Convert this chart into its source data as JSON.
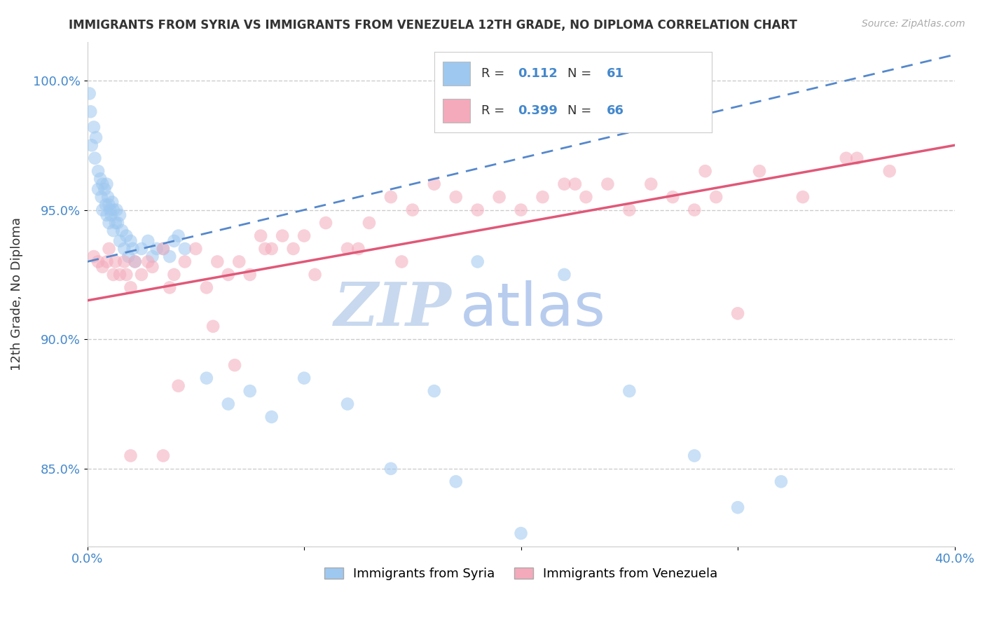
{
  "title": "IMMIGRANTS FROM SYRIA VS IMMIGRANTS FROM VENEZUELA 12TH GRADE, NO DIPLOMA CORRELATION CHART",
  "source": "Source: ZipAtlas.com",
  "ylabel": "12th Grade, No Diploma",
  "xlim": [
    0.0,
    40.0
  ],
  "ylim": [
    82.0,
    101.5
  ],
  "xtick_labels": [
    "0.0%",
    "",
    "",
    "",
    "40.0%"
  ],
  "ytick_labels": [
    "85.0%",
    "90.0%",
    "95.0%",
    "100.0%"
  ],
  "yticks": [
    85.0,
    90.0,
    95.0,
    100.0
  ],
  "legend_label1": "Immigrants from Syria",
  "legend_label2": "Immigrants from Venezuela",
  "r1": "0.112",
  "n1": "61",
  "r2": "0.399",
  "n2": "66",
  "color_syria": "#9EC8F0",
  "color_venezuela": "#F4AABB",
  "line_syria_color": "#5588CC",
  "line_venezuela_color": "#E05878",
  "background_color": "#FFFFFF",
  "grid_color": "#CCCCCC",
  "watermark_zip": "ZIP",
  "watermark_atlas": "atlas",
  "watermark_color_zip": "#C8D8EE",
  "watermark_color_atlas": "#B8CCEE",
  "tick_color": "#4488CC",
  "syria_x": [
    0.1,
    0.15,
    0.2,
    0.3,
    0.35,
    0.4,
    0.5,
    0.5,
    0.6,
    0.65,
    0.7,
    0.7,
    0.8,
    0.85,
    0.9,
    0.9,
    0.95,
    1.0,
    1.0,
    1.05,
    1.1,
    1.15,
    1.2,
    1.2,
    1.3,
    1.35,
    1.4,
    1.5,
    1.5,
    1.6,
    1.7,
    1.8,
    1.9,
    2.0,
    2.1,
    2.2,
    2.5,
    3.0,
    3.5,
    4.0,
    4.5,
    5.5,
    6.5,
    7.5,
    8.5,
    10.0,
    12.0,
    14.0,
    16.0,
    17.0,
    20.0,
    25.0,
    28.0,
    30.0,
    32.0,
    3.2,
    3.8,
    2.8,
    4.2,
    18.0,
    22.0
  ],
  "syria_y": [
    99.5,
    98.8,
    97.5,
    98.2,
    97.0,
    97.8,
    96.5,
    95.8,
    96.2,
    95.5,
    96.0,
    95.0,
    95.8,
    95.2,
    96.0,
    94.8,
    95.5,
    95.2,
    94.5,
    95.0,
    94.8,
    95.3,
    95.0,
    94.2,
    94.5,
    95.0,
    94.5,
    94.8,
    93.8,
    94.2,
    93.5,
    94.0,
    93.2,
    93.8,
    93.5,
    93.0,
    93.5,
    93.2,
    93.5,
    93.8,
    93.5,
    88.5,
    87.5,
    88.0,
    87.0,
    88.5,
    87.5,
    85.0,
    88.0,
    84.5,
    82.5,
    88.0,
    85.5,
    83.5,
    84.5,
    93.5,
    93.2,
    93.8,
    94.0,
    93.0,
    92.5
  ],
  "venezuela_x": [
    0.3,
    0.5,
    0.7,
    0.9,
    1.0,
    1.2,
    1.3,
    1.5,
    1.7,
    1.8,
    2.0,
    2.2,
    2.5,
    2.8,
    3.0,
    3.5,
    3.8,
    4.0,
    4.5,
    5.0,
    5.5,
    6.0,
    6.5,
    7.0,
    7.5,
    8.0,
    8.5,
    9.0,
    9.5,
    10.0,
    11.0,
    12.0,
    13.0,
    14.0,
    15.0,
    16.0,
    17.0,
    18.0,
    19.0,
    20.0,
    21.0,
    22.0,
    23.0,
    24.0,
    25.0,
    26.0,
    27.0,
    28.0,
    29.0,
    30.0,
    31.0,
    33.0,
    35.0,
    37.0,
    4.2,
    6.8,
    5.8,
    8.2,
    10.5,
    2.0,
    12.5,
    14.5,
    3.5,
    22.5,
    28.5,
    35.5
  ],
  "venezuela_y": [
    93.2,
    93.0,
    92.8,
    93.0,
    93.5,
    92.5,
    93.0,
    92.5,
    93.0,
    92.5,
    92.0,
    93.0,
    92.5,
    93.0,
    92.8,
    93.5,
    92.0,
    92.5,
    93.0,
    93.5,
    92.0,
    93.0,
    92.5,
    93.0,
    92.5,
    94.0,
    93.5,
    94.0,
    93.5,
    94.0,
    94.5,
    93.5,
    94.5,
    95.5,
    95.0,
    96.0,
    95.5,
    95.0,
    95.5,
    95.0,
    95.5,
    96.0,
    95.5,
    96.0,
    95.0,
    96.0,
    95.5,
    95.0,
    95.5,
    91.0,
    96.5,
    95.5,
    97.0,
    96.5,
    88.2,
    89.0,
    90.5,
    93.5,
    92.5,
    85.5,
    93.5,
    93.0,
    85.5,
    96.0,
    96.5,
    97.0
  ],
  "syria_line_x0": 0.0,
  "syria_line_y0": 93.0,
  "syria_line_x1": 40.0,
  "syria_line_y1": 101.0,
  "venezuela_line_x0": 0.0,
  "venezuela_line_y0": 91.5,
  "venezuela_line_x1": 40.0,
  "venezuela_line_y1": 97.5
}
